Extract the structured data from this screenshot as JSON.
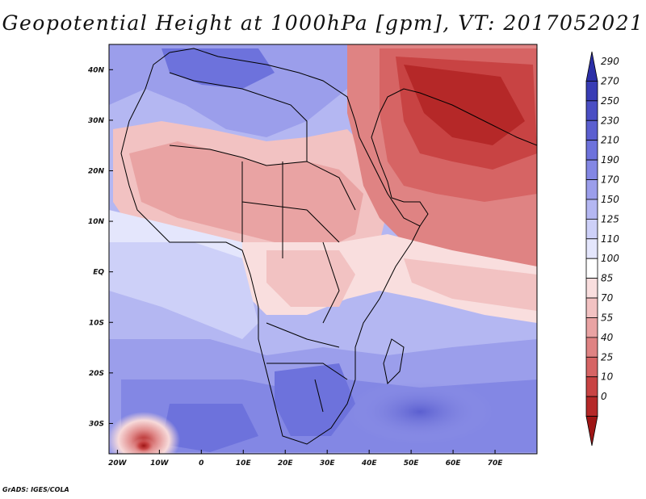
{
  "title": "Geopotential Height at 1000hPa [gpm], VT: 2017052021",
  "credit": "GrADS: IGES/COLA",
  "map": {
    "lon_range": [
      -22,
      80
    ],
    "lat_range": [
      -36,
      45
    ],
    "lat_labels": [
      {
        "value": 40,
        "label": "40N"
      },
      {
        "value": 30,
        "label": "30N"
      },
      {
        "value": 20,
        "label": "20N"
      },
      {
        "value": 10,
        "label": "10N"
      },
      {
        "value": 0,
        "label": "EQ"
      },
      {
        "value": -10,
        "label": "10S"
      },
      {
        "value": -20,
        "label": "20S"
      },
      {
        "value": -30,
        "label": "30S"
      }
    ],
    "lon_labels": [
      {
        "value": -20,
        "label": "20W"
      },
      {
        "value": -10,
        "label": "10W"
      },
      {
        "value": 0,
        "label": "0"
      },
      {
        "value": 10,
        "label": "10E"
      },
      {
        "value": 20,
        "label": "20E"
      },
      {
        "value": 30,
        "label": "30E"
      },
      {
        "value": 40,
        "label": "40E"
      },
      {
        "value": 50,
        "label": "50E"
      },
      {
        "value": 60,
        "label": "60E"
      },
      {
        "value": 70,
        "label": "70E"
      }
    ]
  },
  "colorbar": {
    "labels": [
      "290",
      "270",
      "250",
      "230",
      "210",
      "190",
      "170",
      "150",
      "125",
      "110",
      "100",
      "85",
      "70",
      "55",
      "40",
      "25",
      "10",
      "0"
    ],
    "colors": [
      "#2b2fa7",
      "#383cb5",
      "#4a4ec4",
      "#5b5fd0",
      "#6d72dc",
      "#8387e4",
      "#9b9eeb",
      "#b4b7f2",
      "#cdd0f8",
      "#e4e6fc",
      "#ffffff",
      "#f9dede",
      "#f2c2c2",
      "#e9a3a3",
      "#df8383",
      "#d66464",
      "#c84343",
      "#b52828",
      "#9e1515"
    ]
  },
  "legend_title": ""
}
